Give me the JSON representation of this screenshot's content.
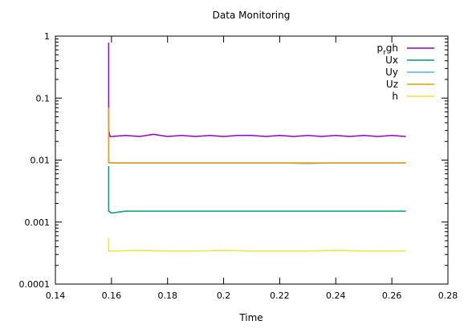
{
  "chart_data": {
    "type": "line",
    "title": "Data Monitoring",
    "xlabel": "Time",
    "ylabel": "",
    "xlim": [
      0.14,
      0.28
    ],
    "ylim": [
      0.0001,
      1
    ],
    "yscale": "log",
    "grid": false,
    "legend_position": "top-right",
    "x_ticks": [
      "0.14",
      "0.16",
      "0.18",
      "0.2",
      "0.22",
      "0.24",
      "0.26",
      "0.28"
    ],
    "y_ticks": [
      "0.0001",
      "0.001",
      "0.01",
      "0.1",
      "1"
    ],
    "series": [
      {
        "name": "p_rgh",
        "name_base": "p",
        "name_sub": "r",
        "name_tail": "gh",
        "color": "#9400D3",
        "x": [
          0.159,
          0.159,
          0.1595,
          0.16,
          0.165,
          0.17,
          0.175,
          0.18,
          0.185,
          0.19,
          0.195,
          0.2,
          0.205,
          0.21,
          0.215,
          0.22,
          0.225,
          0.23,
          0.235,
          0.24,
          0.245,
          0.25,
          0.255,
          0.26,
          0.265
        ],
        "y": [
          0.78,
          0.03,
          0.024,
          0.024,
          0.025,
          0.024,
          0.026,
          0.024,
          0.025,
          0.024,
          0.025,
          0.024,
          0.025,
          0.025,
          0.024,
          0.025,
          0.024,
          0.025,
          0.024,
          0.025,
          0.024,
          0.025,
          0.024,
          0.025,
          0.024
        ]
      },
      {
        "name": "Ux",
        "color": "#009E73",
        "x": [
          0.159,
          0.159,
          0.16,
          0.165,
          0.17,
          0.18,
          0.19,
          0.2,
          0.21,
          0.22,
          0.23,
          0.24,
          0.25,
          0.265
        ],
        "y": [
          0.008,
          0.0015,
          0.0014,
          0.0015,
          0.0015,
          0.0015,
          0.0015,
          0.0015,
          0.0015,
          0.0015,
          0.0015,
          0.0015,
          0.0015,
          0.0015
        ]
      },
      {
        "name": "Uy",
        "color": "#56B4E9",
        "x": [
          0.159,
          0.159,
          0.16,
          0.17,
          0.18,
          0.19,
          0.2,
          0.21,
          0.22,
          0.23,
          0.24,
          0.25,
          0.265
        ],
        "y": [
          0.04,
          0.0092,
          0.009,
          0.009,
          0.009,
          0.009,
          0.009,
          0.009,
          0.009,
          0.0088,
          0.009,
          0.009,
          0.009
        ]
      },
      {
        "name": "Uz",
        "color": "#E69F00",
        "x": [
          0.159,
          0.159,
          0.16,
          0.17,
          0.18,
          0.19,
          0.2,
          0.21,
          0.22,
          0.23,
          0.24,
          0.25,
          0.265
        ],
        "y": [
          0.07,
          0.009,
          0.009,
          0.009,
          0.009,
          0.009,
          0.009,
          0.009,
          0.009,
          0.009,
          0.009,
          0.009,
          0.009
        ]
      },
      {
        "name": "h",
        "color": "#F0E442",
        "x": [
          0.159,
          0.159,
          0.16,
          0.17,
          0.18,
          0.19,
          0.2,
          0.21,
          0.22,
          0.23,
          0.24,
          0.25,
          0.265
        ],
        "y": [
          0.00055,
          0.00034,
          0.00034,
          0.00035,
          0.00034,
          0.00034,
          0.00035,
          0.00034,
          0.00034,
          0.00034,
          0.00035,
          0.00034,
          0.00034
        ]
      }
    ]
  }
}
